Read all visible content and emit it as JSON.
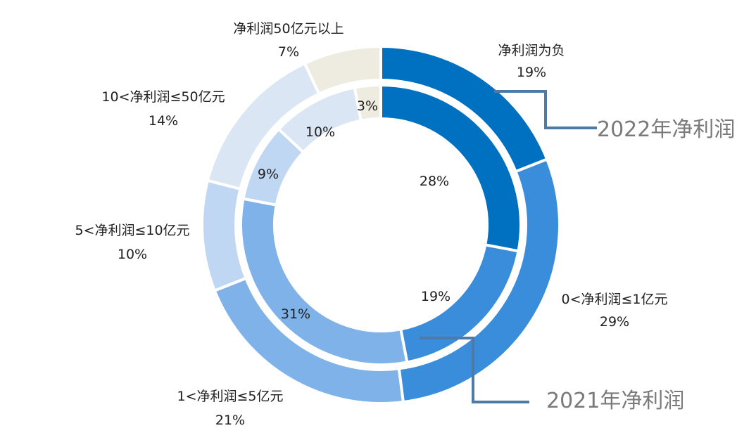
{
  "chart_data": {
    "type": "pie",
    "subtype": "double-donut",
    "categories": [
      "净利润为负",
      "0<净利润≤1亿元",
      "1<净利润≤5亿元",
      "5<净利润≤10亿元",
      "10<净利润≤50亿元",
      "净利润50亿元以上"
    ],
    "series": [
      {
        "name": "2022年净利润",
        "ring": "outer",
        "values": [
          19,
          29,
          21,
          10,
          14,
          7
        ],
        "labels": [
          "19%",
          "29%",
          "21%",
          "10%",
          "14%",
          "7%"
        ]
      },
      {
        "name": "2021年净利润",
        "ring": "inner",
        "values": [
          28,
          19,
          31,
          9,
          10,
          3
        ],
        "labels": [
          "28%",
          "19%",
          "31%",
          "9%",
          "10%",
          "3%"
        ]
      }
    ],
    "colors": [
      "#0070C0",
      "#3A8DDB",
      "#7EB2E8",
      "#BFD7F2",
      "#DAE6F4",
      "#EEEBE1"
    ],
    "title": "",
    "legend": "none"
  }
}
